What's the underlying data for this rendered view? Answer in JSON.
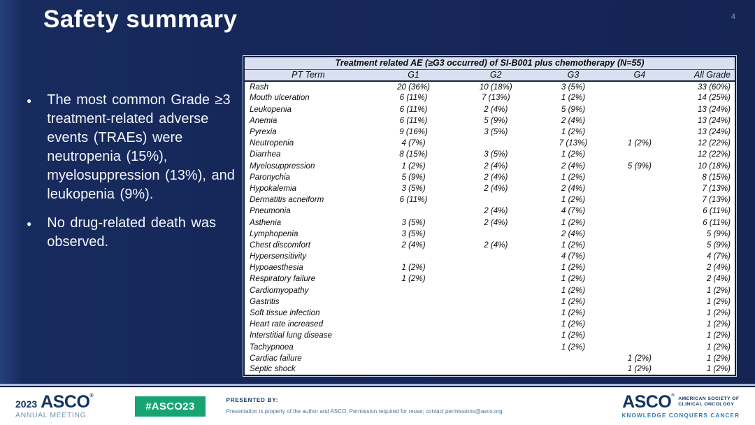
{
  "slide": {
    "title": "Safety summary",
    "page_number": "4"
  },
  "bullets": [
    {
      "text": "The most common Grade ≥3 treatment-related adverse events (TRAEs) were neutropenia (15%), myelosuppression (13%), and leukopenia (9%)."
    },
    {
      "text": "No drug-related death was observed."
    }
  ],
  "table": {
    "title": "Treatment related AE (≥G3 occurred) of SI-B001 plus chemotherapy  (N=55)",
    "columns": [
      "PT Term",
      "G1",
      "G2",
      "G3",
      "G4",
      "All Grade"
    ],
    "rows": [
      [
        "Rash",
        "20 (36%)",
        "10 (18%)",
        "3 (5%)",
        "",
        "33 (60%)"
      ],
      [
        "Mouth ulceration",
        "6 (11%)",
        "7 (13%)",
        "1 (2%)",
        "",
        "14 (25%)"
      ],
      [
        "Leukopenia",
        "6 (11%)",
        "2 (4%)",
        "5 (9%)",
        "",
        "13 (24%)"
      ],
      [
        "Anemia",
        "6 (11%)",
        "5 (9%)",
        "2 (4%)",
        "",
        "13 (24%)"
      ],
      [
        "Pyrexia",
        "9 (16%)",
        "3 (5%)",
        "1 (2%)",
        "",
        "13 (24%)"
      ],
      [
        "Neutropenia",
        "4 (7%)",
        "",
        "7 (13%)",
        "1 (2%)",
        "12 (22%)"
      ],
      [
        "Diarrhea",
        "8 (15%)",
        "3 (5%)",
        "1 (2%)",
        "",
        "12 (22%)"
      ],
      [
        "Myelosuppression",
        "1 (2%)",
        "2 (4%)",
        "2 (4%)",
        "5 (9%)",
        "10 (18%)"
      ],
      [
        "Paronychia",
        "5 (9%)",
        "2 (4%)",
        "1 (2%)",
        "",
        "8 (15%)"
      ],
      [
        "Hypokalemia",
        "3 (5%)",
        "2 (4%)",
        "2 (4%)",
        "",
        "7 (13%)"
      ],
      [
        "Dermatitis acneiform",
        "6 (11%)",
        "",
        "1 (2%)",
        "",
        "7 (13%)"
      ],
      [
        "Pneumonia",
        "",
        "2 (4%)",
        "4 (7%)",
        "",
        "6 (11%)"
      ],
      [
        "Asthenia",
        "3 (5%)",
        "2 (4%)",
        "1 (2%)",
        "",
        "6 (11%)"
      ],
      [
        "Lymphopenia",
        "3 (5%)",
        "",
        "2 (4%)",
        "",
        "5 (9%)"
      ],
      [
        "Chest discomfort",
        "2 (4%)",
        "2 (4%)",
        "1 (2%)",
        "",
        "5 (9%)"
      ],
      [
        "Hypersensitivity",
        "",
        "",
        "4 (7%)",
        "",
        "4 (7%)"
      ],
      [
        "Hypoaesthesia",
        "1 (2%)",
        "",
        "1 (2%)",
        "",
        "2 (4%)"
      ],
      [
        "Respiratory failure",
        "1 (2%)",
        "",
        "1 (2%)",
        "",
        "2 (4%)"
      ],
      [
        "Cardiomyopathy",
        "",
        "",
        "1 (2%)",
        "",
        "1 (2%)"
      ],
      [
        "Gastritis",
        "",
        "",
        "1 (2%)",
        "",
        "1 (2%)"
      ],
      [
        "Soft tissue infection",
        "",
        "",
        "1 (2%)",
        "",
        "1 (2%)"
      ],
      [
        "Heart rate increased",
        "",
        "",
        "1 (2%)",
        "",
        "1 (2%)"
      ],
      [
        "Interstitial lung disease",
        "",
        "",
        "1 (2%)",
        "",
        "1 (2%)"
      ],
      [
        "Tachypnoea",
        "",
        "",
        "1 (2%)",
        "",
        "1 (2%)"
      ],
      [
        "Cardiac failure",
        "",
        "",
        "",
        "1 (2%)",
        "1 (2%)"
      ],
      [
        "Septic shock",
        "",
        "",
        "",
        "1 (2%)",
        "1 (2%)"
      ]
    ]
  },
  "footer": {
    "meeting_year": "2023",
    "meeting_logo": "ASCO",
    "meeting_sub": "ANNUAL MEETING",
    "hashtag": "#ASCO23",
    "presented_by_label": "PRESENTED BY:",
    "disclaimer": "Presentation is property of the author and ASCO. Permission required for reuse; contact permissions@asco.org.",
    "asco_logo": "ASCO",
    "society_line1": "AMERICAN SOCIETY OF",
    "society_line2": "CLINICAL ONCOLOGY",
    "tagline": "KNOWLEDGE CONQUERS CANCER"
  },
  "colors": {
    "navy": "#16285a",
    "table-head-bg": "#d9e0f1",
    "asco-navy": "#11355e",
    "asco-teal": "#2e7cb5",
    "badge-green": "#17a473",
    "rule-blue": "#a9bedc"
  }
}
